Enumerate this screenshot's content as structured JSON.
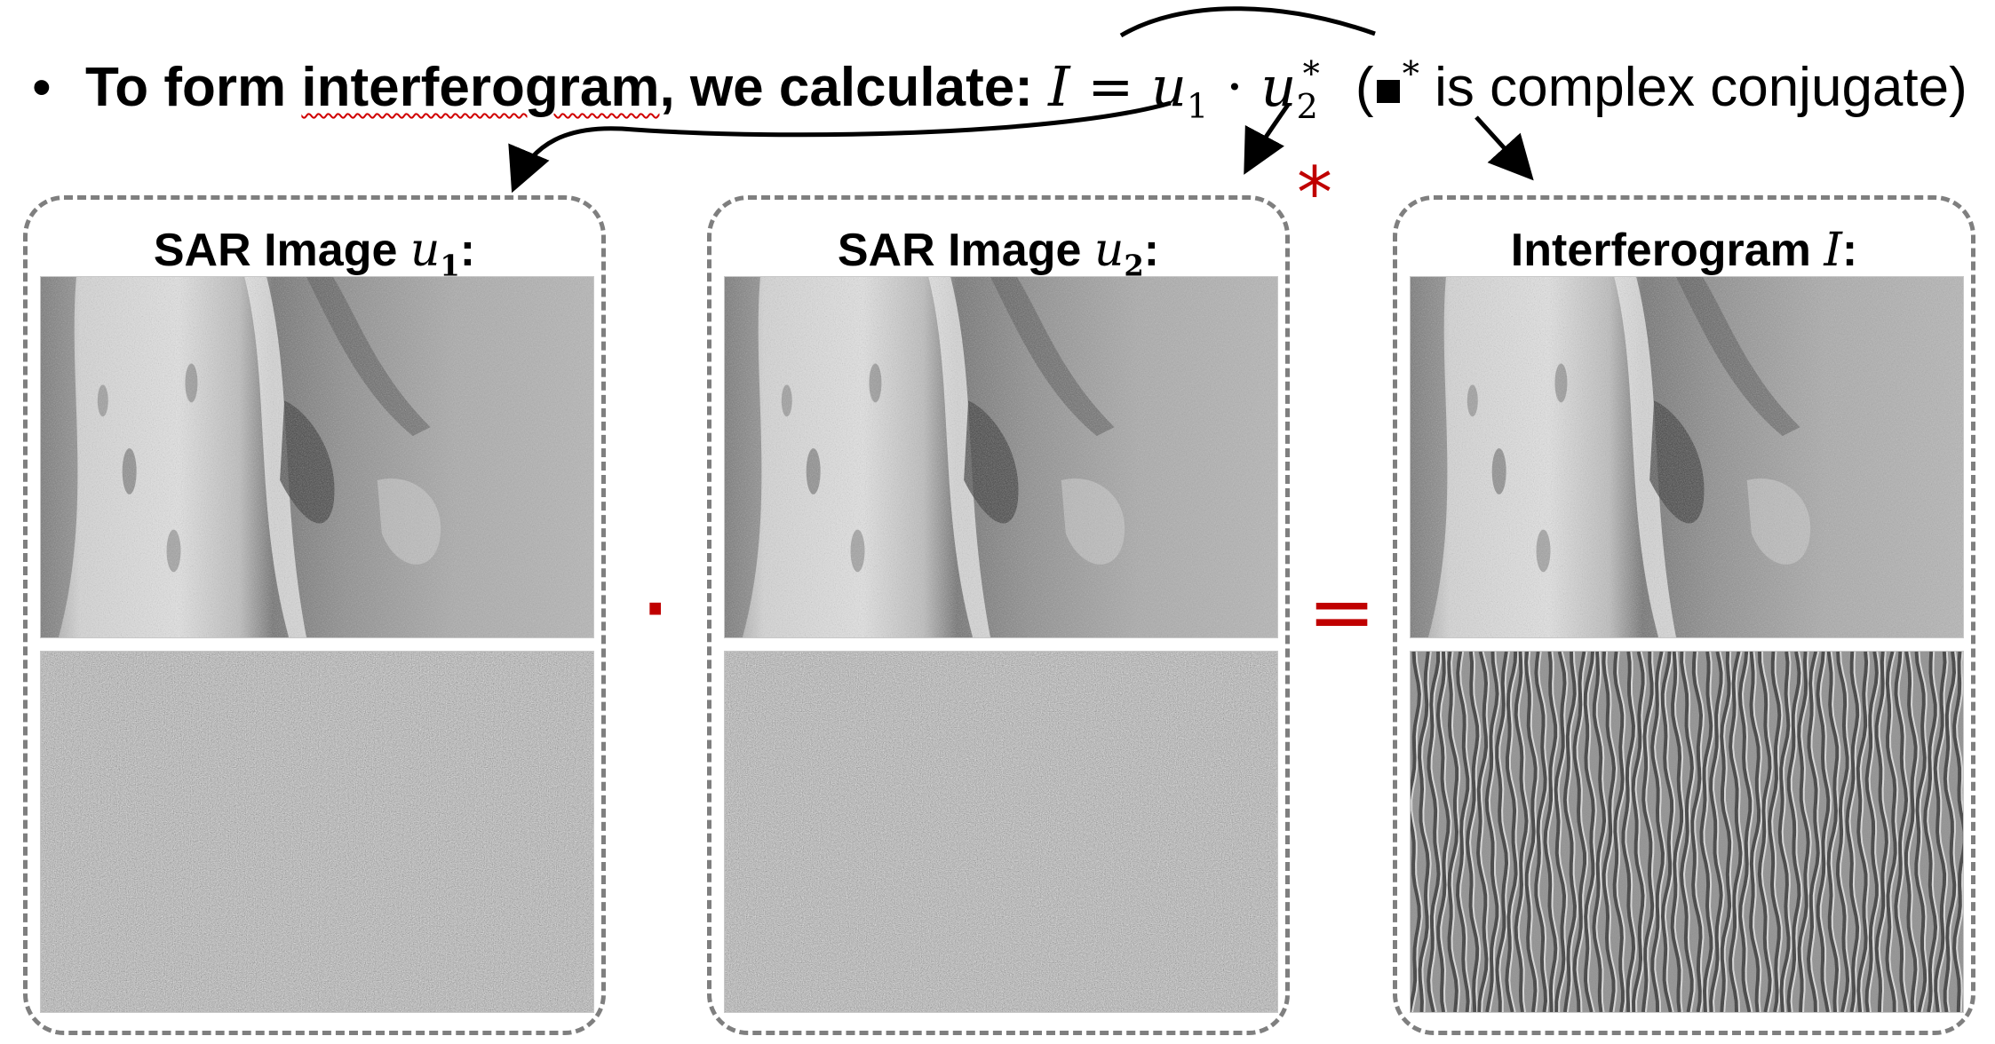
{
  "header": {
    "bullet": "•",
    "lead_a": "To form ",
    "lead_underlined": "interferogram",
    "lead_b": ", we calculate: ",
    "formula": {
      "I": "I",
      "eq": " = ",
      "u": "u",
      "sub1": "1",
      "dot": " · ",
      "sub2": "2",
      "star": "*"
    },
    "note": {
      "open": "(",
      "star": "*",
      "text": " is complex conjugate)"
    }
  },
  "panels": [
    {
      "title": "SAR Image ",
      "var": "u",
      "sub": "1",
      "colon": ":"
    },
    {
      "title": "SAR Image ",
      "var": "u",
      "sub": "2",
      "colon": ":"
    },
    {
      "title": "Interferogram ",
      "var": "I",
      "sub": "",
      "colon": ":"
    }
  ],
  "operators": {
    "dot": "·",
    "star": "*",
    "equals": "="
  },
  "colors": {
    "operator": "#c00000",
    "panel_border": "#7f7f7f"
  }
}
